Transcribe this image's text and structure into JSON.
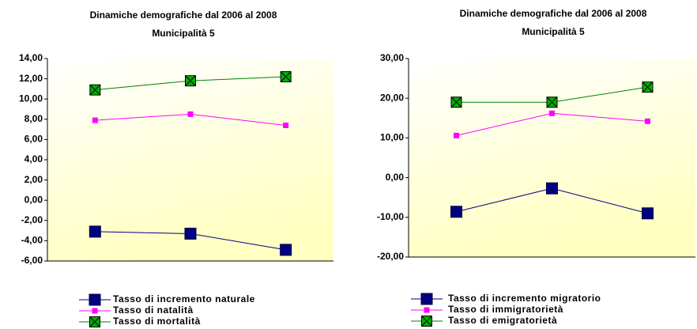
{
  "chart_data": [
    {
      "type": "line",
      "title": "Dinamiche demografiche dal 2006 al 2008",
      "subtitle": "Municipalità 5",
      "categories": [
        null,
        null,
        null
      ],
      "ylim": [
        -6,
        14
      ],
      "yticks": [
        {
          "value": -6,
          "label": "-6,00"
        },
        {
          "value": -4,
          "label": "-4,00"
        },
        {
          "value": -2,
          "label": "-2,00"
        },
        {
          "value": 0,
          "label": "0,00"
        },
        {
          "value": 2,
          "label": "2,00"
        },
        {
          "value": 4,
          "label": "4,00"
        },
        {
          "value": 6,
          "label": "6,00"
        },
        {
          "value": 8,
          "label": "8,00"
        },
        {
          "value": 10,
          "label": "10,00"
        },
        {
          "value": 12,
          "label": "12,00"
        },
        {
          "value": 14,
          "label": "14,00"
        }
      ],
      "legend": "bottom",
      "series": [
        {
          "name": "Tasso di incremento naturale",
          "color": "#000080",
          "marker": "square",
          "values": [
            -3.1,
            -3.3,
            -4.9
          ]
        },
        {
          "name": "Tasso di natalità",
          "color": "#ff00ff",
          "marker": "small-square",
          "values": [
            7.9,
            8.5,
            7.4
          ]
        },
        {
          "name": "Tasso di mortalità",
          "color": "#008000",
          "marker": "x-square",
          "values": [
            10.9,
            11.8,
            12.2
          ]
        }
      ]
    },
    {
      "type": "line",
      "title": "Dinamiche demografiche dal 2006 al 2008",
      "subtitle": "Municipalità 5",
      "categories": [
        null,
        null,
        null
      ],
      "ylim": [
        -20,
        30
      ],
      "yticks": [
        {
          "value": -20,
          "label": "-20,00"
        },
        {
          "value": -10,
          "label": "-10,00"
        },
        {
          "value": 0,
          "label": "0,00"
        },
        {
          "value": 10,
          "label": "10,00"
        },
        {
          "value": 20,
          "label": "20,00"
        },
        {
          "value": 30,
          "label": "30,00"
        }
      ],
      "legend": "bottom",
      "series": [
        {
          "name": "Tasso di incremento migratorio",
          "color": "#000080",
          "marker": "square",
          "values": [
            -8.6,
            -2.7,
            -9.0
          ]
        },
        {
          "name": "Tasso di immigratorietà",
          "color": "#ff00ff",
          "marker": "small-square",
          "values": [
            10.6,
            16.2,
            14.2
          ]
        },
        {
          "name": "Tasso di emigratorietà",
          "color": "#008000",
          "marker": "x-square",
          "values": [
            19.0,
            19.0,
            22.8
          ]
        }
      ]
    }
  ]
}
